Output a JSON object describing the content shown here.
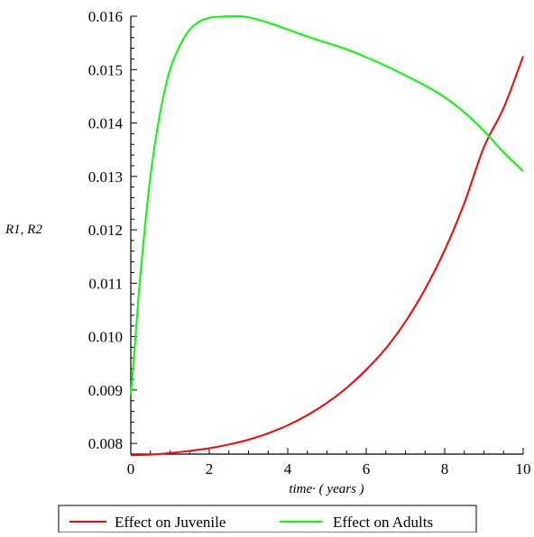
{
  "chart_data": {
    "type": "line",
    "title": "",
    "xlabel": "time· ( years )",
    "ylabel": "R1, R2",
    "xlim": [
      0,
      10
    ],
    "ylim": [
      0.0078,
      0.016
    ],
    "x_ticks": [
      "0",
      "2",
      "4",
      "6",
      "8",
      "10"
    ],
    "y_ticks": [
      "0.008",
      "0.009",
      "0.010",
      "0.011",
      "0.012",
      "0.013",
      "0.014",
      "0.015",
      "0.016"
    ],
    "legend": {
      "placement": "bottom",
      "entries": [
        "Effect on Juvenile",
        "Effect on Adults"
      ]
    },
    "grid": false,
    "series": [
      {
        "name": "Effect on Juvenile",
        "color": "#ff0000",
        "x": [
          0,
          0.5,
          1,
          1.5,
          2,
          2.5,
          3,
          3.5,
          4,
          4.5,
          5,
          5.5,
          6,
          6.5,
          7,
          7.5,
          8,
          8.5,
          9,
          9.5,
          10
        ],
        "y": [
          0.00778,
          0.00779,
          0.00782,
          0.00786,
          0.00791,
          0.00798,
          0.00807,
          0.00819,
          0.00834,
          0.00853,
          0.00876,
          0.00904,
          0.00938,
          0.00978,
          0.01028,
          0.01089,
          0.01162,
          0.0125,
          0.01355,
          0.01428,
          0.01525
        ]
      },
      {
        "name": "Effect on Adults",
        "color": "#00ff00",
        "x": [
          0,
          0.1,
          0.25,
          0.5,
          0.75,
          1,
          1.25,
          1.5,
          1.75,
          2,
          2.25,
          2.5,
          2.75,
          3,
          3.5,
          4,
          4.5,
          5,
          5.5,
          6,
          6.5,
          7,
          7.5,
          8,
          8.5,
          9,
          9.5,
          10
        ],
        "y": [
          0.0089,
          0.0098,
          0.0112,
          0.013,
          0.0142,
          0.015,
          0.01545,
          0.01575,
          0.0159,
          0.01597,
          0.01599,
          0.016,
          0.016,
          0.01598,
          0.01588,
          0.01575,
          0.01562,
          0.0155,
          0.01538,
          0.01523,
          0.01507,
          0.01489,
          0.0147,
          0.01448,
          0.0142,
          0.01385,
          0.01345,
          0.0131
        ]
      }
    ]
  }
}
